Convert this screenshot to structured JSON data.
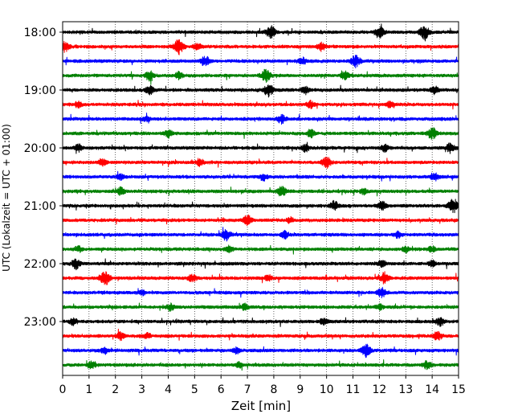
{
  "chart_data": {
    "type": "line",
    "title": "",
    "xlabel": "Zeit  [min]",
    "ylabel": "UTC (Lokalzeit = UTC + 01:00)",
    "xlim": [
      0,
      15
    ],
    "x_ticks": [
      "0",
      "1",
      "2",
      "3",
      "4",
      "5",
      "6",
      "7",
      "8",
      "9",
      "10",
      "11",
      "12",
      "13",
      "14",
      "15"
    ],
    "y_tick_labels": [
      "18:00",
      "19:00",
      "20:00",
      "21:00",
      "22:00",
      "23:00"
    ],
    "grid": "vertical dotted lines at each minute",
    "trace_interval_minutes": 15,
    "trace_colors_cycle": [
      "#000000",
      "#ff0000",
      "#0000ff",
      "#008000"
    ],
    "series": [
      {
        "start": "18:00",
        "color": "#000000",
        "events": [
          {
            "t": 7.9,
            "a": 0.9
          },
          {
            "t": 12.0,
            "a": 0.8
          },
          {
            "t": 13.7,
            "a": 1.0
          }
        ]
      },
      {
        "start": "18:15",
        "color": "#ff0000",
        "events": [
          {
            "t": 0.1,
            "a": 0.7
          },
          {
            "t": 4.4,
            "a": 1.0
          },
          {
            "t": 5.1,
            "a": 0.5
          },
          {
            "t": 9.8,
            "a": 0.6
          }
        ]
      },
      {
        "start": "18:30",
        "color": "#0000ff",
        "events": [
          {
            "t": 5.4,
            "a": 0.7
          },
          {
            "t": 9.1,
            "a": 0.5
          },
          {
            "t": 11.1,
            "a": 0.9
          }
        ]
      },
      {
        "start": "18:45",
        "color": "#008000",
        "events": [
          {
            "t": 3.3,
            "a": 0.7
          },
          {
            "t": 4.4,
            "a": 0.5
          },
          {
            "t": 7.7,
            "a": 0.9
          },
          {
            "t": 10.7,
            "a": 0.6
          }
        ]
      },
      {
        "start": "19:00",
        "color": "#000000",
        "events": [
          {
            "t": 3.3,
            "a": 0.6
          },
          {
            "t": 7.8,
            "a": 0.9
          },
          {
            "t": 9.2,
            "a": 0.5
          },
          {
            "t": 14.1,
            "a": 0.5
          }
        ]
      },
      {
        "start": "19:15",
        "color": "#ff0000",
        "events": [
          {
            "t": 0.6,
            "a": 0.4
          },
          {
            "t": 9.4,
            "a": 0.5
          },
          {
            "t": 12.4,
            "a": 0.4
          }
        ]
      },
      {
        "start": "19:30",
        "color": "#0000ff",
        "events": [
          {
            "t": 3.2,
            "a": 0.4
          },
          {
            "t": 8.3,
            "a": 0.6
          }
        ]
      },
      {
        "start": "19:45",
        "color": "#008000",
        "events": [
          {
            "t": 4.0,
            "a": 0.5
          },
          {
            "t": 9.4,
            "a": 0.5
          },
          {
            "t": 14.0,
            "a": 0.8
          }
        ]
      },
      {
        "start": "20:00",
        "color": "#000000",
        "events": [
          {
            "t": 0.6,
            "a": 0.5
          },
          {
            "t": 9.2,
            "a": 0.5
          },
          {
            "t": 12.2,
            "a": 0.5
          },
          {
            "t": 14.7,
            "a": 0.7
          }
        ]
      },
      {
        "start": "20:15",
        "color": "#ff0000",
        "events": [
          {
            "t": 1.5,
            "a": 0.5
          },
          {
            "t": 5.2,
            "a": 0.5
          },
          {
            "t": 10.0,
            "a": 0.8
          }
        ]
      },
      {
        "start": "20:30",
        "color": "#0000ff",
        "events": [
          {
            "t": 2.2,
            "a": 0.4
          },
          {
            "t": 7.6,
            "a": 0.5
          },
          {
            "t": 14.1,
            "a": 0.5
          }
        ]
      },
      {
        "start": "20:45",
        "color": "#008000",
        "events": [
          {
            "t": 2.2,
            "a": 0.5
          },
          {
            "t": 8.3,
            "a": 0.8
          },
          {
            "t": 11.4,
            "a": 0.4
          }
        ]
      },
      {
        "start": "21:00",
        "color": "#000000",
        "events": [
          {
            "t": 10.3,
            "a": 0.7
          },
          {
            "t": 12.1,
            "a": 0.6
          },
          {
            "t": 14.8,
            "a": 1.0
          }
        ]
      },
      {
        "start": "21:15",
        "color": "#ff0000",
        "events": [
          {
            "t": 7.0,
            "a": 0.7
          },
          {
            "t": 8.6,
            "a": 0.4
          }
        ]
      },
      {
        "start": "21:30",
        "color": "#0000ff",
        "events": [
          {
            "t": 6.2,
            "a": 0.8
          },
          {
            "t": 8.4,
            "a": 0.6
          },
          {
            "t": 12.7,
            "a": 0.4
          }
        ]
      },
      {
        "start": "21:45",
        "color": "#008000",
        "events": [
          {
            "t": 0.6,
            "a": 0.4
          },
          {
            "t": 6.3,
            "a": 0.4
          },
          {
            "t": 13.0,
            "a": 0.4
          },
          {
            "t": 14.0,
            "a": 0.4
          }
        ]
      },
      {
        "start": "22:00",
        "color": "#000000",
        "events": [
          {
            "t": 0.5,
            "a": 0.7
          },
          {
            "t": 12.1,
            "a": 0.5
          },
          {
            "t": 14.0,
            "a": 0.4
          }
        ]
      },
      {
        "start": "22:15",
        "color": "#ff0000",
        "events": [
          {
            "t": 1.6,
            "a": 1.0
          },
          {
            "t": 4.9,
            "a": 0.6
          },
          {
            "t": 7.8,
            "a": 0.5
          },
          {
            "t": 12.2,
            "a": 0.8
          }
        ]
      },
      {
        "start": "22:30",
        "color": "#0000ff",
        "events": [
          {
            "t": 3.0,
            "a": 0.4
          },
          {
            "t": 12.1,
            "a": 0.7
          }
        ]
      },
      {
        "start": "22:45",
        "color": "#008000",
        "events": [
          {
            "t": 4.1,
            "a": 0.5
          },
          {
            "t": 6.9,
            "a": 0.4
          },
          {
            "t": 12.0,
            "a": 0.4
          }
        ]
      },
      {
        "start": "23:00",
        "color": "#000000",
        "events": [
          {
            "t": 0.4,
            "a": 0.5
          },
          {
            "t": 9.9,
            "a": 0.5
          },
          {
            "t": 14.3,
            "a": 0.6
          }
        ]
      },
      {
        "start": "23:15",
        "color": "#ff0000",
        "events": [
          {
            "t": 2.2,
            "a": 0.5
          },
          {
            "t": 3.2,
            "a": 0.4
          },
          {
            "t": 14.2,
            "a": 0.6
          }
        ]
      },
      {
        "start": "23:30",
        "color": "#0000ff",
        "events": [
          {
            "t": 1.6,
            "a": 0.4
          },
          {
            "t": 6.6,
            "a": 0.4
          },
          {
            "t": 11.5,
            "a": 0.9
          }
        ]
      },
      {
        "start": "23:45",
        "color": "#008000",
        "events": [
          {
            "t": 1.1,
            "a": 0.5
          },
          {
            "t": 6.7,
            "a": 0.4
          },
          {
            "t": 13.8,
            "a": 0.6
          }
        ]
      }
    ]
  }
}
